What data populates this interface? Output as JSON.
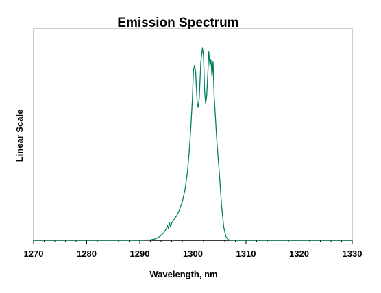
{
  "chart_data": {
    "type": "line",
    "title": "Emission Spectrum",
    "xlabel": "Wavelength, nm",
    "ylabel": "Linear Scale",
    "xlim": [
      1270,
      1330
    ],
    "ylim": [
      0,
      1.1
    ],
    "x_ticks": [
      1270,
      1280,
      1290,
      1300,
      1310,
      1320,
      1330
    ],
    "x_minor_step": 2,
    "y_ticks_shown": false,
    "grid": false,
    "legend": "none",
    "line_color": "#008060",
    "series": [
      {
        "x": [
          1270,
          1280,
          1290,
          1292,
          1293,
          1293.5,
          1294,
          1294.5,
          1295,
          1295.2,
          1295.4,
          1295.6,
          1295.8,
          1296,
          1296.5,
          1297,
          1297.5,
          1298,
          1298.5,
          1299,
          1299.3,
          1299.6,
          1299.9,
          1300.1,
          1300.3,
          1300.5,
          1300.8,
          1301.0,
          1301.2,
          1301.5,
          1301.8,
          1302.0,
          1302.2,
          1302.4,
          1302.6,
          1302.8,
          1303.0,
          1303.2,
          1303.4,
          1303.6,
          1303.8,
          1304.0,
          1304.2,
          1304.5,
          1305.0,
          1305.4,
          1305.8,
          1306.2,
          1306.6,
          1307,
          1308,
          1310,
          1320,
          1330
        ],
        "y": [
          0,
          0,
          0,
          0.002,
          0.008,
          0.015,
          0.025,
          0.04,
          0.06,
          0.08,
          0.06,
          0.09,
          0.07,
          0.09,
          0.11,
          0.13,
          0.16,
          0.2,
          0.26,
          0.36,
          0.46,
          0.58,
          0.73,
          0.88,
          0.91,
          0.88,
          0.72,
          0.69,
          0.74,
          0.93,
          1.0,
          0.96,
          0.78,
          0.71,
          0.75,
          0.86,
          0.98,
          0.91,
          0.94,
          0.85,
          0.93,
          0.75,
          0.66,
          0.52,
          0.34,
          0.18,
          0.07,
          0.02,
          0.005,
          0,
          0,
          0,
          0,
          0
        ]
      }
    ]
  }
}
